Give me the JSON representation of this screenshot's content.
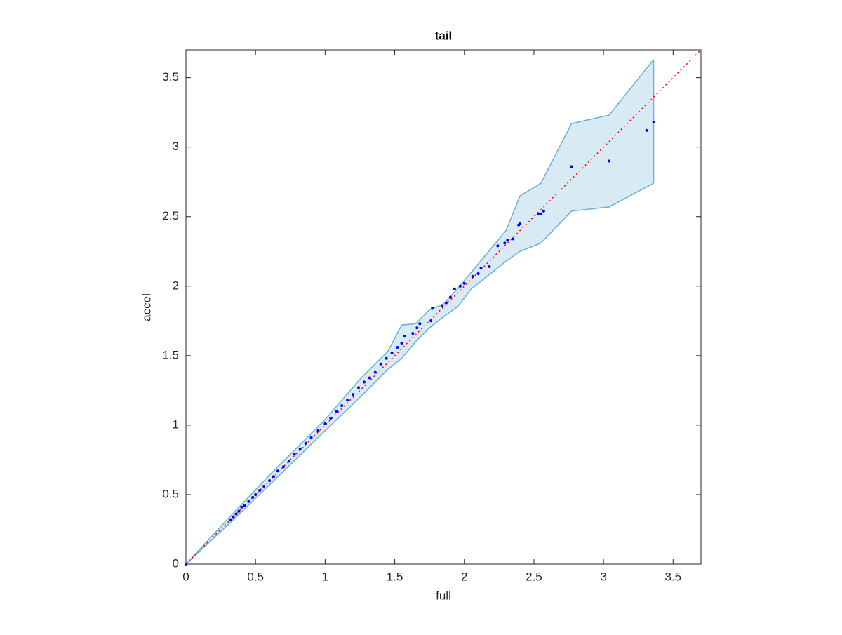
{
  "chart_data": {
    "type": "scatter",
    "title": "tail",
    "x_label": "full",
    "y_label": "accel",
    "xlim": [
      0,
      3.7
    ],
    "ylim": [
      0,
      3.7
    ],
    "xticks": [
      0,
      0.5,
      1,
      1.5,
      2,
      2.5,
      3,
      3.5
    ],
    "yticks": [
      0,
      0.5,
      1,
      1.5,
      2,
      2.5,
      3,
      3.5
    ],
    "band": {
      "color": "#9ecae1",
      "edge_color": "#6baed6",
      "x": [
        0,
        0.32,
        0.6,
        1.0,
        1.25,
        1.45,
        1.55,
        1.65,
        1.75,
        1.85,
        1.95,
        2.05,
        2.15,
        2.3,
        2.4,
        2.55,
        2.77,
        3.04,
        3.36
      ],
      "upper": [
        0,
        0.345,
        0.64,
        1.04,
        1.33,
        1.53,
        1.72,
        1.73,
        1.83,
        1.87,
        1.98,
        2.1,
        2.22,
        2.4,
        2.65,
        2.74,
        3.17,
        3.23,
        3.63
      ],
      "lower": [
        0,
        0.3,
        0.57,
        0.96,
        1.2,
        1.4,
        1.48,
        1.6,
        1.7,
        1.78,
        1.85,
        1.98,
        2.06,
        2.18,
        2.25,
        2.31,
        2.54,
        2.57,
        2.74
      ]
    },
    "reference": {
      "color": "#ff0000",
      "x": [
        0,
        3.7
      ],
      "values": [
        0,
        3.7
      ]
    },
    "series": [
      {
        "color": "#0000ff",
        "x": [
          0,
          0.32,
          0.34,
          0.36,
          0.38,
          0.4,
          0.42,
          0.45,
          0.48,
          0.5,
          0.53,
          0.56,
          0.6,
          0.63,
          0.66,
          0.7,
          0.74,
          0.78,
          0.82,
          0.86,
          0.9,
          0.95,
          1.0,
          1.04,
          1.08,
          1.12,
          1.16,
          1.2,
          1.24,
          1.28,
          1.32,
          1.36,
          1.4,
          1.44,
          1.48,
          1.52,
          1.55,
          1.57,
          1.63,
          1.66,
          1.68,
          1.76,
          1.77,
          1.84,
          1.87,
          1.9,
          1.93,
          1.97,
          2.0,
          2.06,
          2.1,
          2.12,
          2.18,
          2.24,
          2.29,
          2.31,
          2.35,
          2.39,
          2.4,
          2.53,
          2.55,
          2.57,
          2.77,
          3.04,
          3.31,
          3.36
        ],
        "values": [
          0,
          0.32,
          0.34,
          0.36,
          0.38,
          0.41,
          0.42,
          0.45,
          0.48,
          0.5,
          0.53,
          0.56,
          0.6,
          0.63,
          0.67,
          0.7,
          0.74,
          0.79,
          0.83,
          0.87,
          0.91,
          0.96,
          1.01,
          1.05,
          1.1,
          1.14,
          1.18,
          1.22,
          1.27,
          1.31,
          1.34,
          1.38,
          1.44,
          1.48,
          1.52,
          1.56,
          1.59,
          1.64,
          1.66,
          1.7,
          1.73,
          1.75,
          1.84,
          1.86,
          1.88,
          1.92,
          1.98,
          2.0,
          2.02,
          2.07,
          2.09,
          2.13,
          2.14,
          2.29,
          2.31,
          2.33,
          2.34,
          2.44,
          2.45,
          2.52,
          2.52,
          2.54,
          2.86,
          2.9,
          3.12,
          3.18
        ]
      }
    ]
  }
}
